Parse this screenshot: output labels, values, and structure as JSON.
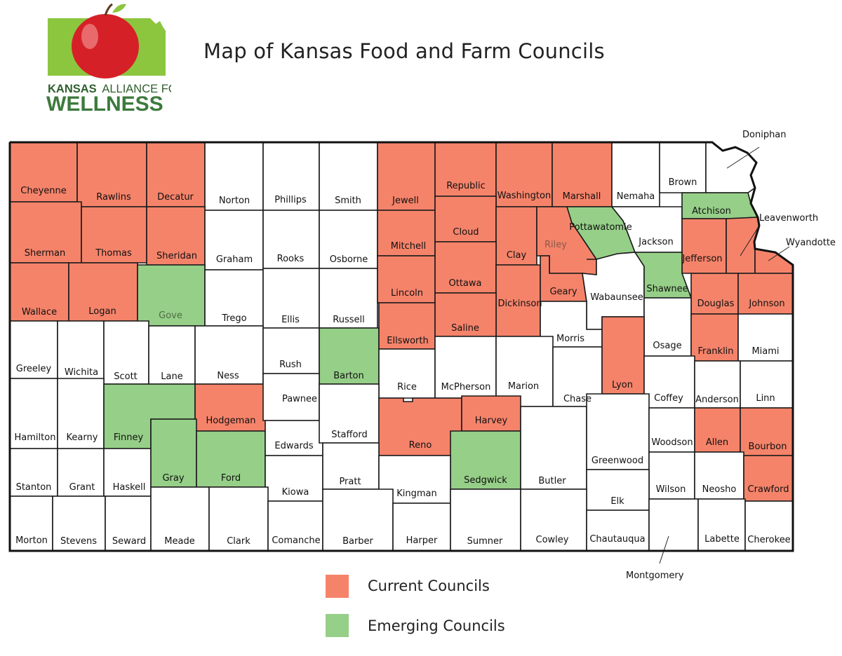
{
  "title": "Map of Kansas Food and Farm Councils",
  "logo": {
    "line1": "KANSAS ALLIANCE FOR",
    "line1_bold": "KANSAS",
    "line2": "WELLNESS"
  },
  "colors": {
    "current": "#f5836a",
    "emerging": "#96cf88",
    "none": "#ffffff",
    "logo_green": "#8cc63f",
    "logo_dark_green": "#3d7a3d",
    "apple_red": "#d62028"
  },
  "legend": [
    {
      "label": "Current Councils",
      "status": "current"
    },
    {
      "label": "Emerging Councils",
      "status": "emerging"
    }
  ],
  "callouts": {
    "doniphan": "Doniphan",
    "leavenworth": "Leavenworth",
    "wyandotte": "Wyandotte",
    "montgomery": "Montgomery"
  },
  "counties": [
    {
      "name": "Cheyenne",
      "status": "current"
    },
    {
      "name": "Rawlins",
      "status": "current"
    },
    {
      "name": "Decatur",
      "status": "current"
    },
    {
      "name": "Norton",
      "status": "none"
    },
    {
      "name": "Phillips",
      "status": "none"
    },
    {
      "name": "Smith",
      "status": "none"
    },
    {
      "name": "Jewell",
      "status": "current"
    },
    {
      "name": "Republic",
      "status": "current"
    },
    {
      "name": "Washington",
      "status": "current"
    },
    {
      "name": "Marshall",
      "status": "current"
    },
    {
      "name": "Nemaha",
      "status": "none"
    },
    {
      "name": "Brown",
      "status": "none"
    },
    {
      "name": "Doniphan",
      "status": "none"
    },
    {
      "name": "Sherman",
      "status": "current"
    },
    {
      "name": "Thomas",
      "status": "current"
    },
    {
      "name": "Sheridan",
      "status": "current"
    },
    {
      "name": "Graham",
      "status": "none"
    },
    {
      "name": "Rooks",
      "status": "none"
    },
    {
      "name": "Osborne",
      "status": "none"
    },
    {
      "name": "Mitchell",
      "status": "current"
    },
    {
      "name": "Cloud",
      "status": "current"
    },
    {
      "name": "Clay",
      "status": "current"
    },
    {
      "name": "Riley",
      "status": "current"
    },
    {
      "name": "Pottawatomie",
      "status": "emerging"
    },
    {
      "name": "Jackson",
      "status": "none"
    },
    {
      "name": "Atchison",
      "status": "emerging"
    },
    {
      "name": "Jefferson",
      "status": "current"
    },
    {
      "name": "Leavenworth",
      "status": "current"
    },
    {
      "name": "Wyandotte",
      "status": "current"
    },
    {
      "name": "Wallace",
      "status": "current"
    },
    {
      "name": "Logan",
      "status": "current"
    },
    {
      "name": "Gove",
      "status": "emerging"
    },
    {
      "name": "Trego",
      "status": "none"
    },
    {
      "name": "Ellis",
      "status": "none"
    },
    {
      "name": "Russell",
      "status": "none"
    },
    {
      "name": "Lincoln",
      "status": "current"
    },
    {
      "name": "Ottawa",
      "status": "current"
    },
    {
      "name": "Dickinson",
      "status": "current"
    },
    {
      "name": "Geary",
      "status": "current"
    },
    {
      "name": "Wabaunsee",
      "status": "none"
    },
    {
      "name": "Shawnee",
      "status": "emerging"
    },
    {
      "name": "Douglas",
      "status": "current"
    },
    {
      "name": "Johnson",
      "status": "current"
    },
    {
      "name": "Greeley",
      "status": "none"
    },
    {
      "name": "Wichita",
      "status": "none"
    },
    {
      "name": "Scott",
      "status": "none"
    },
    {
      "name": "Lane",
      "status": "none"
    },
    {
      "name": "Ness",
      "status": "none"
    },
    {
      "name": "Rush",
      "status": "none"
    },
    {
      "name": "Barton",
      "status": "emerging"
    },
    {
      "name": "Ellsworth",
      "status": "current"
    },
    {
      "name": "Saline",
      "status": "current"
    },
    {
      "name": "Morris",
      "status": "none"
    },
    {
      "name": "Osage",
      "status": "none"
    },
    {
      "name": "Franklin",
      "status": "current"
    },
    {
      "name": "Miami",
      "status": "none"
    },
    {
      "name": "Hamilton",
      "status": "none"
    },
    {
      "name": "Kearny",
      "status": "none"
    },
    {
      "name": "Finney",
      "status": "emerging"
    },
    {
      "name": "Hodgeman",
      "status": "current"
    },
    {
      "name": "Pawnee",
      "status": "none"
    },
    {
      "name": "Rice",
      "status": "none"
    },
    {
      "name": "McPherson",
      "status": "none"
    },
    {
      "name": "Marion",
      "status": "none"
    },
    {
      "name": "Chase",
      "status": "none"
    },
    {
      "name": "Lyon",
      "status": "current"
    },
    {
      "name": "Coffey",
      "status": "none"
    },
    {
      "name": "Anderson",
      "status": "none"
    },
    {
      "name": "Linn",
      "status": "none"
    },
    {
      "name": "Stanton",
      "status": "none"
    },
    {
      "name": "Grant",
      "status": "none"
    },
    {
      "name": "Haskell",
      "status": "none"
    },
    {
      "name": "Gray",
      "status": "emerging"
    },
    {
      "name": "Ford",
      "status": "emerging"
    },
    {
      "name": "Edwards",
      "status": "none"
    },
    {
      "name": "Stafford",
      "status": "none"
    },
    {
      "name": "Reno",
      "status": "current"
    },
    {
      "name": "Harvey",
      "status": "current"
    },
    {
      "name": "Sedgwick",
      "status": "emerging"
    },
    {
      "name": "Butler",
      "status": "none"
    },
    {
      "name": "Greenwood",
      "status": "none"
    },
    {
      "name": "Woodson",
      "status": "none"
    },
    {
      "name": "Allen",
      "status": "current"
    },
    {
      "name": "Bourbon",
      "status": "current"
    },
    {
      "name": "Kiowa",
      "status": "none"
    },
    {
      "name": "Pratt",
      "status": "none"
    },
    {
      "name": "Kingman",
      "status": "none"
    },
    {
      "name": "Wilson",
      "status": "none"
    },
    {
      "name": "Neosho",
      "status": "none"
    },
    {
      "name": "Crawford",
      "status": "current"
    },
    {
      "name": "Elk",
      "status": "none"
    },
    {
      "name": "Morton",
      "status": "none"
    },
    {
      "name": "Stevens",
      "status": "none"
    },
    {
      "name": "Seward",
      "status": "none"
    },
    {
      "name": "Meade",
      "status": "none"
    },
    {
      "name": "Clark",
      "status": "none"
    },
    {
      "name": "Comanche",
      "status": "none"
    },
    {
      "name": "Barber",
      "status": "none"
    },
    {
      "name": "Harper",
      "status": "none"
    },
    {
      "name": "Sumner",
      "status": "none"
    },
    {
      "name": "Cowley",
      "status": "none"
    },
    {
      "name": "Chautauqua",
      "status": "none"
    },
    {
      "name": "Montgomery",
      "status": "none"
    },
    {
      "name": "Labette",
      "status": "none"
    },
    {
      "name": "Cherokee",
      "status": "none"
    }
  ]
}
